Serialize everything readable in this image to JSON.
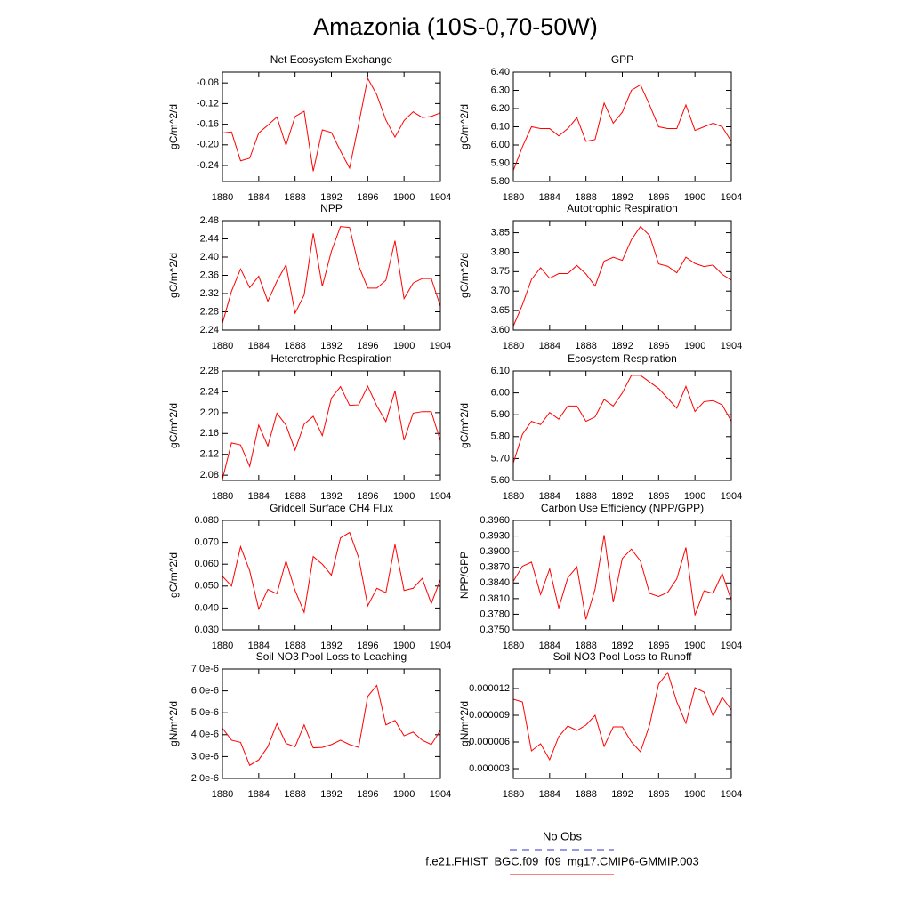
{
  "title": "Amazonia (10S-0,70-50W)",
  "legend": [
    {
      "name": "No Obs",
      "color": "#3333cc",
      "dashed": true
    },
    {
      "name": "f.e21.FHIST_BGC.f09_f09_mg17.CMIP6-GMMIP.003",
      "color": "#ff0000",
      "dashed": false
    }
  ],
  "chart_data": [
    {
      "type": "line",
      "title": "Net Ecosystem Exchange",
      "ylabel": "gC/m^2/d",
      "color": "#ff0000",
      "x": [
        1880,
        1881,
        1882,
        1883,
        1884,
        1885,
        1886,
        1887,
        1888,
        1889,
        1890,
        1891,
        1892,
        1893,
        1894,
        1895,
        1896,
        1897,
        1898,
        1899,
        1900,
        1901,
        1902,
        1903,
        1904
      ],
      "values": [
        -0.177,
        -0.175,
        -0.231,
        -0.226,
        -0.177,
        -0.162,
        -0.146,
        -0.201,
        -0.145,
        -0.135,
        -0.251,
        -0.171,
        -0.176,
        -0.212,
        -0.245,
        -0.16,
        -0.071,
        -0.103,
        -0.152,
        -0.185,
        -0.153,
        -0.136,
        -0.147,
        -0.145,
        -0.138
      ],
      "xlim": [
        1880,
        1904
      ],
      "xticks": [
        1880,
        1884,
        1888,
        1892,
        1896,
        1900,
        1904
      ],
      "ylim": [
        -0.271,
        -0.059
      ],
      "yticks": [
        -0.24,
        {
          "value": -0.2,
          "label": "-0.20"
        },
        -0.16,
        -0.12,
        -0.08
      ]
    },
    {
      "type": "line",
      "title": "GPP",
      "ylabel": "gC/m^2/d",
      "color": "#ff0000",
      "x": [
        1880,
        1881,
        1882,
        1883,
        1884,
        1885,
        1886,
        1887,
        1888,
        1889,
        1890,
        1891,
        1892,
        1893,
        1894,
        1895,
        1896,
        1897,
        1898,
        1899,
        1900,
        1901,
        1902,
        1903,
        1904
      ],
      "values": [
        5.86,
        5.99,
        6.1,
        6.09,
        6.09,
        6.05,
        6.09,
        6.15,
        6.02,
        6.03,
        6.23,
        6.12,
        6.18,
        6.3,
        6.33,
        6.22,
        6.1,
        6.09,
        6.09,
        6.22,
        6.08,
        6.1,
        6.12,
        6.1,
        6.02
      ],
      "xlim": [
        1880,
        1904
      ],
      "xticks": [
        1880,
        1884,
        1888,
        1892,
        1896,
        1900,
        1904
      ],
      "ylim": [
        5.8,
        6.4
      ],
      "yticks": [
        {
          "value": 5.8,
          "label": "5.80"
        },
        {
          "value": 5.9,
          "label": "5.90"
        },
        {
          "value": 6.0,
          "label": "6.00"
        },
        {
          "value": 6.1,
          "label": "6.10"
        },
        {
          "value": 6.2,
          "label": "6.20"
        },
        {
          "value": 6.3,
          "label": "6.30"
        },
        {
          "value": 6.4,
          "label": "6.40"
        }
      ]
    },
    {
      "type": "line",
      "title": "NPP",
      "ylabel": "gC/m^2/d",
      "color": "#ff0000",
      "x": [
        1880,
        1881,
        1882,
        1883,
        1884,
        1885,
        1886,
        1887,
        1888,
        1889,
        1890,
        1891,
        1892,
        1893,
        1894,
        1895,
        1896,
        1897,
        1898,
        1899,
        1900,
        1901,
        1902,
        1903,
        1904
      ],
      "values": [
        2.255,
        2.325,
        2.374,
        2.333,
        2.358,
        2.303,
        2.347,
        2.383,
        2.277,
        2.317,
        2.452,
        2.336,
        2.413,
        2.467,
        2.465,
        2.381,
        2.332,
        2.332,
        2.349,
        2.436,
        2.309,
        2.343,
        2.353,
        2.353,
        2.292
      ],
      "xlim": [
        1880,
        1904
      ],
      "xticks": [
        1880,
        1884,
        1888,
        1892,
        1896,
        1900,
        1904
      ],
      "ylim": [
        2.24,
        2.48
      ],
      "yticks": [
        2.24,
        2.28,
        2.32,
        2.36,
        {
          "value": 2.4,
          "label": "2.40"
        },
        2.44,
        2.48
      ]
    },
    {
      "type": "line",
      "title": "Autotrophic Respiration",
      "ylabel": "gC/m^2/d",
      "color": "#ff0000",
      "x": [
        1880,
        1881,
        1882,
        1883,
        1884,
        1885,
        1886,
        1887,
        1888,
        1889,
        1890,
        1891,
        1892,
        1893,
        1894,
        1895,
        1896,
        1897,
        1898,
        1899,
        1900,
        1901,
        1902,
        1903,
        1904
      ],
      "values": [
        3.61,
        3.665,
        3.73,
        3.76,
        3.733,
        3.745,
        3.745,
        3.766,
        3.744,
        3.713,
        3.777,
        3.787,
        3.779,
        3.832,
        3.866,
        3.843,
        3.77,
        3.764,
        3.747,
        3.787,
        3.771,
        3.763,
        3.767,
        3.743,
        3.728
      ],
      "xlim": [
        1880,
        1904
      ],
      "xticks": [
        1880,
        1884,
        1888,
        1892,
        1896,
        1900,
        1904
      ],
      "ylim": [
        3.6,
        3.881
      ],
      "yticks": [
        {
          "value": 3.6,
          "label": "3.60"
        },
        3.65,
        {
          "value": 3.7,
          "label": "3.70"
        },
        3.75,
        {
          "value": 3.8,
          "label": "3.80"
        },
        3.85
      ]
    },
    {
      "type": "line",
      "title": "Heterotrophic Respiration",
      "ylabel": "gC/m^2/d",
      "color": "#ff0000",
      "x": [
        1880,
        1881,
        1882,
        1883,
        1884,
        1885,
        1886,
        1887,
        1888,
        1889,
        1890,
        1891,
        1892,
        1893,
        1894,
        1895,
        1896,
        1897,
        1898,
        1899,
        1900,
        1901,
        1902,
        1903,
        1904
      ],
      "values": [
        2.072,
        2.142,
        2.138,
        2.097,
        2.176,
        2.136,
        2.199,
        2.176,
        2.128,
        2.178,
        2.193,
        2.156,
        2.228,
        2.25,
        2.214,
        2.215,
        2.251,
        2.213,
        2.183,
        2.242,
        2.147,
        2.199,
        2.202,
        2.202,
        2.146
      ],
      "xlim": [
        1880,
        1904
      ],
      "xticks": [
        1880,
        1884,
        1888,
        1892,
        1896,
        1900,
        1904
      ],
      "ylim": [
        2.07,
        2.28
      ],
      "yticks": [
        2.08,
        2.12,
        2.16,
        {
          "value": 2.2,
          "label": "2.20"
        },
        2.24,
        2.28
      ]
    },
    {
      "type": "line",
      "title": "Ecosystem Respiration",
      "ylabel": "gC/m^2/d",
      "color": "#ff0000",
      "x": [
        1880,
        1881,
        1882,
        1883,
        1884,
        1885,
        1886,
        1887,
        1888,
        1889,
        1890,
        1891,
        1892,
        1893,
        1894,
        1895,
        1896,
        1897,
        1898,
        1899,
        1900,
        1901,
        1902,
        1903,
        1904
      ],
      "values": [
        5.68,
        5.81,
        5.87,
        5.855,
        5.91,
        5.88,
        5.94,
        5.94,
        5.87,
        5.89,
        5.97,
        5.94,
        6.0,
        6.08,
        6.08,
        6.05,
        6.02,
        5.975,
        5.93,
        6.03,
        5.915,
        5.96,
        5.965,
        5.945,
        5.87
      ],
      "xlim": [
        1880,
        1904
      ],
      "xticks": [
        1880,
        1884,
        1888,
        1892,
        1896,
        1900,
        1904
      ],
      "ylim": [
        5.6,
        6.1
      ],
      "yticks": [
        {
          "value": 5.6,
          "label": "5.60"
        },
        {
          "value": 5.7,
          "label": "5.70"
        },
        {
          "value": 5.8,
          "label": "5.80"
        },
        {
          "value": 5.9,
          "label": "5.90"
        },
        {
          "value": 6.0,
          "label": "6.00"
        },
        {
          "value": 6.1,
          "label": "6.10"
        }
      ]
    },
    {
      "type": "line",
      "title": "Gridcell Surface CH4 Flux",
      "ylabel": "gC/m^2/d",
      "color": "#ff0000",
      "x": [
        1880,
        1881,
        1882,
        1883,
        1884,
        1885,
        1886,
        1887,
        1888,
        1889,
        1890,
        1891,
        1892,
        1893,
        1894,
        1895,
        1896,
        1897,
        1898,
        1899,
        1900,
        1901,
        1902,
        1903,
        1904
      ],
      "values": [
        0.0545,
        0.05,
        0.068,
        0.057,
        0.0395,
        0.0485,
        0.0465,
        0.0615,
        0.048,
        0.038,
        0.0635,
        0.06,
        0.055,
        0.072,
        0.0745,
        0.063,
        0.041,
        0.049,
        0.047,
        0.069,
        0.048,
        0.049,
        0.0535,
        0.042,
        0.053
      ],
      "xlim": [
        1880,
        1904
      ],
      "xticks": [
        1880,
        1884,
        1888,
        1892,
        1896,
        1900,
        1904
      ],
      "ylim": [
        0.03,
        0.08
      ],
      "yticks": [
        {
          "value": 0.03,
          "label": "0.030"
        },
        {
          "value": 0.04,
          "label": "0.040"
        },
        {
          "value": 0.05,
          "label": "0.050"
        },
        {
          "value": 0.06,
          "label": "0.060"
        },
        {
          "value": 0.07,
          "label": "0.070"
        },
        {
          "value": 0.08,
          "label": "0.080"
        }
      ]
    },
    {
      "type": "line",
      "title": "Carbon Use Efficiency (NPP/GPP)",
      "ylabel": "NPP/GPP",
      "color": "#ff0000",
      "x": [
        1880,
        1881,
        1882,
        1883,
        1884,
        1885,
        1886,
        1887,
        1888,
        1889,
        1890,
        1891,
        1892,
        1893,
        1894,
        1895,
        1896,
        1897,
        1898,
        1899,
        1900,
        1901,
        1902,
        1903,
        1904
      ],
      "values": [
        0.3843,
        0.3872,
        0.388,
        0.3818,
        0.3867,
        0.3792,
        0.385,
        0.3871,
        0.377,
        0.3828,
        0.3932,
        0.3803,
        0.3887,
        0.3905,
        0.3882,
        0.382,
        0.3814,
        0.3822,
        0.3848,
        0.3908,
        0.3778,
        0.3825,
        0.382,
        0.3858,
        0.3807
      ],
      "xlim": [
        1880,
        1904
      ],
      "xticks": [
        1880,
        1884,
        1888,
        1892,
        1896,
        1900,
        1904
      ],
      "ylim": [
        0.375,
        0.396
      ],
      "yticks": [
        {
          "value": 0.375,
          "label": "0.3750"
        },
        {
          "value": 0.378,
          "label": "0.3780"
        },
        {
          "value": 0.381,
          "label": "0.3810"
        },
        {
          "value": 0.384,
          "label": "0.3840"
        },
        {
          "value": 0.387,
          "label": "0.3870"
        },
        {
          "value": 0.39,
          "label": "0.3900"
        },
        {
          "value": 0.393,
          "label": "0.3930"
        },
        {
          "value": 0.396,
          "label": "0.3960"
        }
      ]
    },
    {
      "type": "line",
      "title": "Soil NO3 Pool Loss to Leaching",
      "ylabel": "gN/m^2/d",
      "color": "#ff0000",
      "x": [
        1880,
        1881,
        1882,
        1883,
        1884,
        1885,
        1886,
        1887,
        1888,
        1889,
        1890,
        1891,
        1892,
        1893,
        1894,
        1895,
        1896,
        1897,
        1898,
        1899,
        1900,
        1901,
        1902,
        1903,
        1904
      ],
      "values": [
        4.3e-06,
        3.75e-06,
        3.65e-06,
        2.6e-06,
        2.85e-06,
        3.45e-06,
        4.5e-06,
        3.6e-06,
        3.45e-06,
        4.45e-06,
        3.4e-06,
        3.42e-06,
        3.55e-06,
        3.75e-06,
        3.55e-06,
        3.42e-06,
        5.75e-06,
        6.25e-06,
        4.45e-06,
        4.65e-06,
        3.95e-06,
        4.12e-06,
        3.75e-06,
        3.55e-06,
        4.2e-06
      ],
      "xlim": [
        1880,
        1904
      ],
      "xticks": [
        1880,
        1884,
        1888,
        1892,
        1896,
        1900,
        1904
      ],
      "ylim": [
        2e-06,
        7e-06
      ],
      "yticks": [
        {
          "value": 2e-06,
          "label": "2.0e-6"
        },
        {
          "value": 3e-06,
          "label": "3.0e-6"
        },
        {
          "value": 4e-06,
          "label": "4.0e-6"
        },
        {
          "value": 5e-06,
          "label": "5.0e-6"
        },
        {
          "value": 6e-06,
          "label": "6.0e-6"
        },
        {
          "value": 7e-06,
          "label": "7.0e-6"
        }
      ]
    },
    {
      "type": "line",
      "title": "Soil NO3 Pool Loss to Runoff",
      "ylabel": "gN/m^2/d",
      "color": "#ff0000",
      "x": [
        1880,
        1881,
        1882,
        1883,
        1884,
        1885,
        1886,
        1887,
        1888,
        1889,
        1890,
        1891,
        1892,
        1893,
        1894,
        1895,
        1896,
        1897,
        1898,
        1899,
        1900,
        1901,
        1902,
        1903,
        1904
      ],
      "values": [
        1.08e-05,
        1.05e-05,
        5e-06,
        5.8e-06,
        4e-06,
        6.6e-06,
        7.8e-06,
        7.3e-06,
        7.9e-06,
        9e-06,
        5.5e-06,
        7.7e-06,
        7.7e-06,
        6e-06,
        4.9e-06,
        7.9e-06,
        1.25e-05,
        1.38e-05,
        1.05e-05,
        8.1e-06,
        1.21e-05,
        1.16e-05,
        8.9e-06,
        1.1e-05,
        9.6e-06
      ],
      "xlim": [
        1880,
        1904
      ],
      "xticks": [
        1880,
        1884,
        1888,
        1892,
        1896,
        1900,
        1904
      ],
      "ylim": [
        1.9e-06,
        1.42e-05
      ],
      "yticks": [
        3e-06,
        6e-06,
        9e-06,
        1.2e-05
      ]
    }
  ]
}
